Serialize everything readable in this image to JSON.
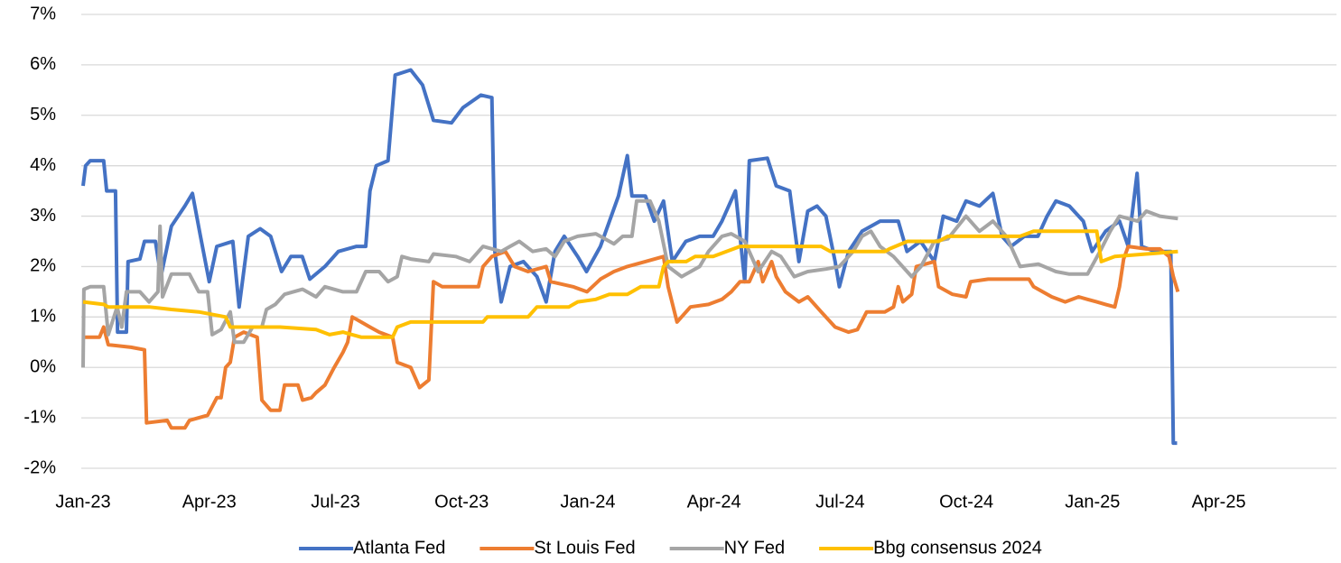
{
  "chart_data": {
    "type": "line",
    "xlim": [
      0,
      29.8
    ],
    "xticks": [
      {
        "value": 0,
        "label": "Jan-23"
      },
      {
        "value": 3,
        "label": "Apr-23"
      },
      {
        "value": 6,
        "label": "Jul-23"
      },
      {
        "value": 9,
        "label": "Oct-23"
      },
      {
        "value": 12,
        "label": "Jan-24"
      },
      {
        "value": 15,
        "label": "Apr-24"
      },
      {
        "value": 18,
        "label": "Jul-24"
      },
      {
        "value": 21,
        "label": "Oct-24"
      },
      {
        "value": 24,
        "label": "Jan-25"
      },
      {
        "value": 27,
        "label": "Apr-25"
      }
    ],
    "ylim": [
      -2,
      7
    ],
    "yticks": [
      {
        "value": -2,
        "label": "-2%"
      },
      {
        "value": -1,
        "label": "-1%"
      },
      {
        "value": 0,
        "label": "0%"
      },
      {
        "value": 1,
        "label": "1%"
      },
      {
        "value": 2,
        "label": "2%"
      },
      {
        "value": 3,
        "label": "3%"
      },
      {
        "value": 4,
        "label": "4%"
      },
      {
        "value": 5,
        "label": "5%"
      },
      {
        "value": 6,
        "label": "6%"
      },
      {
        "value": 7,
        "label": "7%"
      }
    ],
    "grid": true,
    "legend": "bottom",
    "series": [
      {
        "name": "Atlanta Fed",
        "color": "#4472C4",
        "x": [
          0,
          0.06,
          0.17,
          0.49,
          0.56,
          0.77,
          0.82,
          1.03,
          1.07,
          1.35,
          1.46,
          1.72,
          1.85,
          2.1,
          2.42,
          2.6,
          2.79,
          3.0,
          3.18,
          3.56,
          3.71,
          3.93,
          4.21,
          4.46,
          4.72,
          4.94,
          5.21,
          5.39,
          5.75,
          6.07,
          6.5,
          6.72,
          6.82,
          6.97,
          7.25,
          7.42,
          7.79,
          8.07,
          8.33,
          8.76,
          9.03,
          9.46,
          9.72,
          9.79,
          9.94,
          10.15,
          10.47,
          10.79,
          11.01,
          11.22,
          11.44,
          11.76,
          11.97,
          12.3,
          12.73,
          12.94,
          13.05,
          13.37,
          13.58,
          13.8,
          14.01,
          14.33,
          14.66,
          14.98,
          15.19,
          15.51,
          15.73,
          15.84,
          16.27,
          16.48,
          16.8,
          17.02,
          17.23,
          17.45,
          17.66,
          17.88,
          17.98,
          18.2,
          18.52,
          18.95,
          19.38,
          19.59,
          19.91,
          20.24,
          20.45,
          20.77,
          20.99,
          21.31,
          21.63,
          21.85,
          22.06,
          22.38,
          22.7,
          22.92,
          23.13,
          23.45,
          23.78,
          23.99,
          24.31,
          24.64,
          24.85,
          25.06,
          25.17,
          25.49,
          25.86,
          25.92,
          26.01
        ],
        "values": [
          3.6,
          4.0,
          4.1,
          4.1,
          3.5,
          3.5,
          0.7,
          0.7,
          2.1,
          2.15,
          2.5,
          2.5,
          1.8,
          2.8,
          3.2,
          3.45,
          2.6,
          1.7,
          2.4,
          2.5,
          1.2,
          2.6,
          2.75,
          2.6,
          1.9,
          2.2,
          2.2,
          1.75,
          2.0,
          2.3,
          2.4,
          2.4,
          3.5,
          4.0,
          4.1,
          5.8,
          5.9,
          5.6,
          4.9,
          4.85,
          5.15,
          5.4,
          5.35,
          2.3,
          1.3,
          2.0,
          2.1,
          1.8,
          1.3,
          2.3,
          2.6,
          2.2,
          1.9,
          2.4,
          3.4,
          4.2,
          3.4,
          3.4,
          2.9,
          3.3,
          2.1,
          2.5,
          2.6,
          2.6,
          2.9,
          3.5,
          1.7,
          4.1,
          4.15,
          3.6,
          3.5,
          2.1,
          3.1,
          3.2,
          3.0,
          2.1,
          1.6,
          2.3,
          2.7,
          2.9,
          2.9,
          2.3,
          2.5,
          2.1,
          3.0,
          2.9,
          3.3,
          3.2,
          3.45,
          2.6,
          2.4,
          2.6,
          2.6,
          3.0,
          3.3,
          3.2,
          2.9,
          2.3,
          2.7,
          2.9,
          2.4,
          3.85,
          2.4,
          2.3,
          2.3,
          -1.5,
          -1.5
        ]
      },
      {
        "name": "St Louis Fed",
        "color": "#ED7D31",
        "x": [
          0,
          0.39,
          0.49,
          0.6,
          1.14,
          1.46,
          1.51,
          2.0,
          2.1,
          2.42,
          2.53,
          2.96,
          3.18,
          3.28,
          3.39,
          3.5,
          3.6,
          3.82,
          4.14,
          4.25,
          4.46,
          4.68,
          4.79,
          5.11,
          5.22,
          5.43,
          5.54,
          5.75,
          5.97,
          6.18,
          6.29,
          6.4,
          6.61,
          6.82,
          7.04,
          7.36,
          7.47,
          7.79,
          8.0,
          8.22,
          8.33,
          8.54,
          9.4,
          9.51,
          9.72,
          10.04,
          10.26,
          10.58,
          11.01,
          11.12,
          11.65,
          11.98,
          12.3,
          12.62,
          12.94,
          13.37,
          13.8,
          13.91,
          14.12,
          14.44,
          14.87,
          15.19,
          15.41,
          15.62,
          15.84,
          16.05,
          16.16,
          16.37,
          16.48,
          16.7,
          17.02,
          17.23,
          17.55,
          17.88,
          18.2,
          18.41,
          18.63,
          19.06,
          19.27,
          19.38,
          19.49,
          19.7,
          19.81,
          20.24,
          20.34,
          20.67,
          20.99,
          21.1,
          21.52,
          22.49,
          22.6,
          23.03,
          23.35,
          23.67,
          23.88,
          24.1,
          24.31,
          24.53,
          24.64,
          24.74,
          24.85,
          25.28,
          25.6,
          25.82,
          25.92,
          26.03
        ],
        "values": [
          0.6,
          0.6,
          0.8,
          0.45,
          0.4,
          0.35,
          -1.1,
          -1.05,
          -1.2,
          -1.2,
          -1.05,
          -0.95,
          -0.6,
          -0.6,
          0.0,
          0.1,
          0.6,
          0.7,
          0.6,
          -0.65,
          -0.85,
          -0.85,
          -0.35,
          -0.35,
          -0.65,
          -0.6,
          -0.5,
          -0.35,
          0.0,
          0.3,
          0.5,
          1.0,
          0.9,
          0.8,
          0.7,
          0.6,
          0.1,
          0.0,
          -0.4,
          -0.25,
          1.7,
          1.6,
          1.6,
          2.0,
          2.2,
          2.3,
          2.0,
          1.9,
          2.0,
          1.7,
          1.6,
          1.5,
          1.75,
          1.9,
          2.0,
          2.1,
          2.2,
          1.6,
          0.9,
          1.2,
          1.25,
          1.35,
          1.5,
          1.7,
          1.7,
          2.1,
          1.7,
          2.1,
          1.8,
          1.5,
          1.3,
          1.4,
          1.1,
          0.8,
          0.7,
          0.75,
          1.1,
          1.1,
          1.2,
          1.6,
          1.3,
          1.45,
          2.0,
          2.1,
          1.6,
          1.45,
          1.4,
          1.7,
          1.75,
          1.75,
          1.6,
          1.4,
          1.3,
          1.4,
          1.35,
          1.3,
          1.25,
          1.2,
          1.6,
          2.15,
          2.4,
          2.35,
          2.35,
          2.2,
          1.8,
          1.5
        ]
      },
      {
        "name": "NY Fed",
        "color": "#A5A5A5",
        "x": [
          0,
          0.02,
          0.17,
          0.49,
          0.6,
          0.81,
          0.92,
          1.03,
          1.35,
          1.57,
          1.78,
          1.83,
          1.89,
          2.1,
          2.53,
          2.75,
          2.96,
          3.07,
          3.28,
          3.5,
          3.6,
          3.82,
          4.03,
          4.25,
          4.36,
          4.57,
          4.79,
          5.22,
          5.54,
          5.75,
          6.18,
          6.5,
          6.72,
          7.04,
          7.25,
          7.47,
          7.58,
          7.79,
          8.22,
          8.33,
          8.86,
          9.19,
          9.51,
          9.94,
          10.15,
          10.37,
          10.69,
          11.01,
          11.22,
          11.44,
          11.76,
          12.19,
          12.62,
          12.83,
          13.05,
          13.16,
          13.48,
          13.69,
          13.91,
          14.23,
          14.66,
          14.87,
          15.19,
          15.41,
          15.73,
          16.05,
          16.37,
          16.59,
          16.91,
          17.23,
          17.66,
          17.98,
          18.31,
          18.52,
          18.73,
          18.95,
          19.27,
          19.7,
          19.92,
          20.24,
          20.56,
          20.99,
          21.31,
          21.63,
          21.95,
          22.28,
          22.71,
          23.13,
          23.45,
          23.88,
          24.21,
          24.42,
          24.64,
          25.07,
          25.28,
          25.6,
          26.03
        ],
        "values": [
          0.0,
          1.55,
          1.6,
          1.6,
          0.65,
          1.2,
          0.8,
          1.5,
          1.5,
          1.3,
          1.5,
          2.8,
          1.4,
          1.85,
          1.85,
          1.5,
          1.5,
          0.65,
          0.75,
          1.1,
          0.5,
          0.5,
          0.8,
          0.8,
          1.15,
          1.25,
          1.45,
          1.55,
          1.4,
          1.6,
          1.5,
          1.5,
          1.9,
          1.9,
          1.7,
          1.8,
          2.2,
          2.15,
          2.1,
          2.25,
          2.2,
          2.1,
          2.4,
          2.3,
          2.4,
          2.5,
          2.3,
          2.35,
          2.2,
          2.5,
          2.6,
          2.65,
          2.45,
          2.6,
          2.6,
          3.3,
          3.3,
          2.9,
          2.0,
          1.8,
          2.0,
          2.3,
          2.6,
          2.65,
          2.5,
          1.9,
          2.3,
          2.2,
          1.8,
          1.9,
          1.95,
          2.0,
          2.3,
          2.6,
          2.7,
          2.4,
          2.2,
          1.8,
          2.0,
          2.5,
          2.55,
          3.0,
          2.7,
          2.9,
          2.6,
          2.0,
          2.05,
          1.9,
          1.85,
          1.85,
          2.35,
          2.7,
          3.0,
          2.9,
          3.1,
          3.0,
          2.95
        ]
      },
      {
        "name": "Bbg consensus 2024",
        "color": "#FFC000",
        "x": [
          0,
          0.49,
          0.6,
          1.57,
          2.1,
          2.75,
          3.39,
          3.5,
          4.68,
          5.54,
          5.86,
          6.18,
          6.61,
          7.36,
          7.47,
          7.79,
          9.51,
          9.61,
          10.58,
          10.79,
          11.55,
          11.76,
          12.19,
          12.51,
          12.94,
          13.26,
          13.69,
          13.8,
          13.91,
          14.34,
          14.55,
          14.98,
          15.62,
          17.55,
          17.77,
          19.06,
          19.17,
          19.6,
          20.34,
          20.56,
          22.28,
          22.6,
          24.1,
          24.21,
          24.53,
          26.03
        ],
        "values": [
          1.3,
          1.25,
          1.2,
          1.2,
          1.15,
          1.1,
          1.0,
          0.8,
          0.8,
          0.75,
          0.65,
          0.7,
          0.6,
          0.6,
          0.8,
          0.9,
          0.9,
          1.0,
          1.0,
          1.2,
          1.2,
          1.3,
          1.35,
          1.45,
          1.45,
          1.6,
          1.6,
          2.0,
          2.1,
          2.1,
          2.2,
          2.2,
          2.4,
          2.4,
          2.3,
          2.3,
          2.35,
          2.5,
          2.5,
          2.6,
          2.6,
          2.7,
          2.7,
          2.1,
          2.2,
          2.3
        ]
      }
    ]
  }
}
